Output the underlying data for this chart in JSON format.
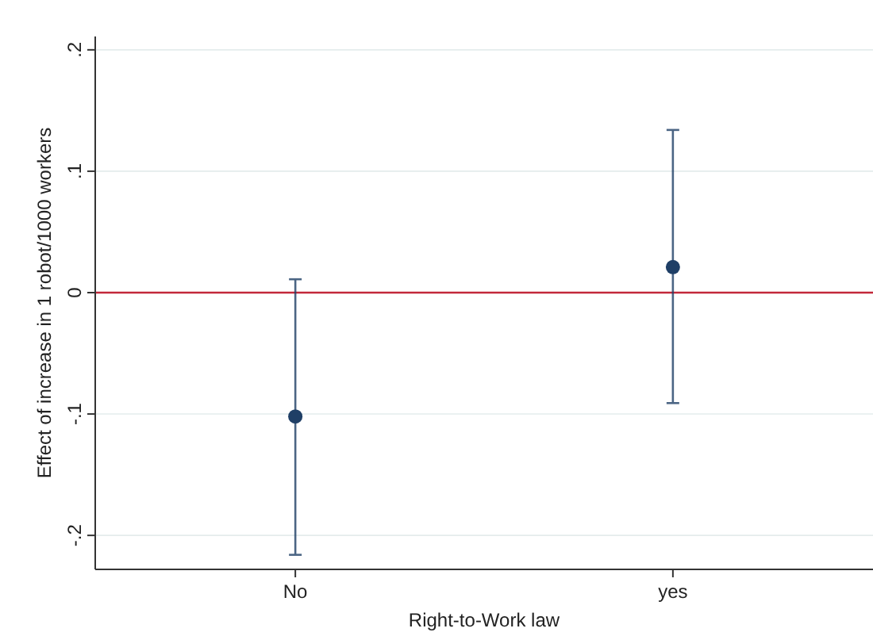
{
  "chart_data": {
    "type": "scatter",
    "xlabel": "Right-to-Work law",
    "ylabel": "Effect of increase in 1 robot/1000 workers",
    "categories": [
      "No",
      "yes"
    ],
    "series": [
      {
        "color": "#1f3f66",
        "values": [
          -0.102,
          0.021
        ],
        "errors": [
          [
            -0.216,
            0.011
          ],
          [
            -0.091,
            0.134
          ]
        ]
      }
    ],
    "ylim": [
      -0.228,
      0.211
    ],
    "yticks": [
      {
        "value": -0.2,
        "label": "-.2"
      },
      {
        "value": -0.1,
        "label": "-.1"
      },
      0,
      {
        "value": 0.1,
        "label": ".1"
      },
      {
        "value": 0.2,
        "label": ".2"
      }
    ],
    "ref_lines": [
      {
        "axis": "y",
        "value": 0,
        "color": "#c2283a"
      }
    ],
    "grid": "y",
    "marker": "circle"
  }
}
